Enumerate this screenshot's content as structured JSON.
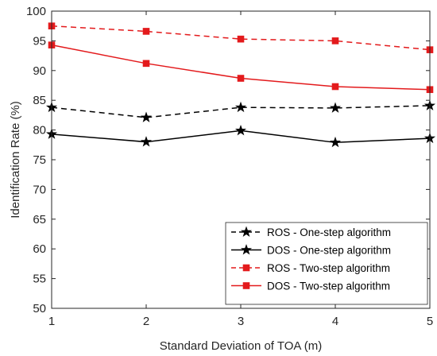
{
  "chart_data": {
    "type": "line",
    "title": "",
    "xlabel": "Standard Deviation of TOA (m)",
    "ylabel": "Identification Rate (%)",
    "x": [
      1,
      2,
      3,
      4,
      5
    ],
    "xlim": [
      1,
      5
    ],
    "ylim": [
      50,
      100
    ],
    "xticks": [
      "1",
      "2",
      "3",
      "4",
      "5"
    ],
    "yticks": [
      "50",
      "55",
      "60",
      "65",
      "70",
      "75",
      "80",
      "85",
      "90",
      "95",
      "100"
    ],
    "grid": false,
    "legend_position": "bottom-right",
    "series": [
      {
        "name": "ROS - One-step algorithm",
        "values": [
          83.8,
          82.1,
          83.8,
          83.7,
          84.1
        ],
        "color": "#000000",
        "dash": "dashed",
        "marker": "star"
      },
      {
        "name": "DOS - One-step algorithm",
        "values": [
          79.3,
          78.0,
          79.9,
          77.9,
          78.6
        ],
        "color": "#000000",
        "dash": "solid",
        "marker": "star"
      },
      {
        "name": "ROS - Two-step algorithm",
        "values": [
          97.5,
          96.6,
          95.3,
          95.0,
          93.5
        ],
        "color": "#e31a1c",
        "dash": "dashed",
        "marker": "square"
      },
      {
        "name": "DOS - Two-step algorithm",
        "values": [
          94.3,
          91.2,
          88.7,
          87.3,
          86.8
        ],
        "color": "#e31a1c",
        "dash": "solid",
        "marker": "square"
      }
    ]
  }
}
